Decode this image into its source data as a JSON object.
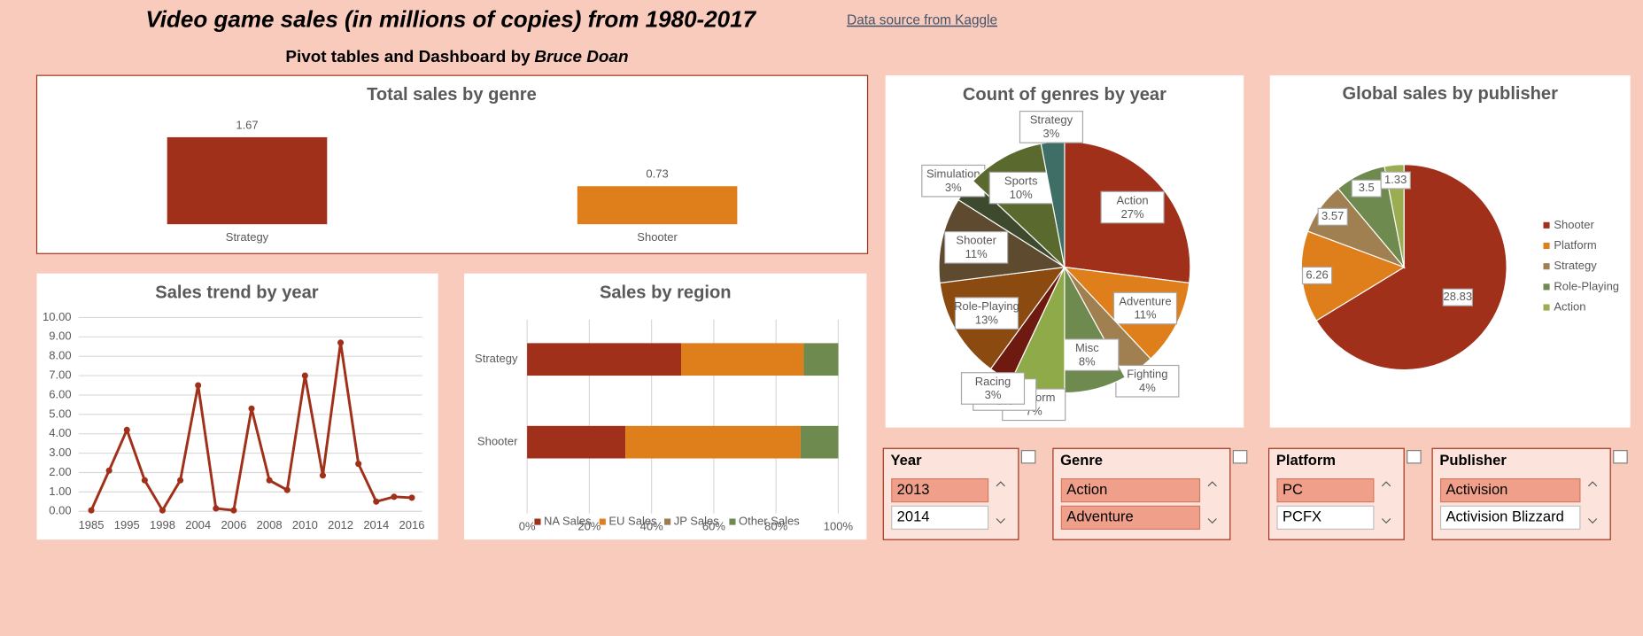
{
  "header": {
    "title": "Video game sales (in millions of copies) from 1980-2017",
    "link": "Data source from Kaggle",
    "subtitle": "Pivot tables and Dashboard by",
    "author": "Bruce Doan"
  },
  "chart_data": [
    {
      "type": "bar",
      "title": "Total sales by genre",
      "categories": [
        "Strategy",
        "Shooter"
      ],
      "values": [
        1.67,
        0.73
      ],
      "colors": [
        "#a0301a",
        "#df7f1c"
      ]
    },
    {
      "type": "line",
      "title": "Sales trend by year",
      "categories": [
        "1985",
        null,
        "1995",
        null,
        "1998",
        null,
        "2004",
        null,
        "2006",
        null,
        "2008",
        null,
        "2010",
        null,
        "2012",
        null,
        "2014",
        null,
        "2016"
      ],
      "values": [
        0.05,
        2.1,
        4.2,
        1.6,
        0.05,
        1.6,
        6.5,
        0.15,
        0.05,
        5.3,
        1.6,
        1.1,
        7.0,
        1.85,
        8.7,
        2.45,
        0.5,
        0.75,
        0.7
      ],
      "color": "#a0301a",
      "ylim": [
        0,
        10
      ],
      "yticks": [
        {
          "value": 0,
          "label": "0.00"
        },
        {
          "value": 1,
          "label": "1.00"
        },
        {
          "value": 2,
          "label": "2.00"
        },
        {
          "value": 3,
          "label": "3.00"
        },
        {
          "value": 4,
          "label": "4.00"
        },
        {
          "value": 5,
          "label": "5.00"
        },
        {
          "value": 6,
          "label": "6.00"
        },
        {
          "value": 7,
          "label": "7.00"
        },
        {
          "value": 8,
          "label": "8.00"
        },
        {
          "value": 9,
          "label": "9.00"
        },
        {
          "value": 10,
          "label": "10.00"
        }
      ],
      "grid": true
    },
    {
      "type": "bar",
      "orientation": "horizontal",
      "stacked": true,
      "title": "Sales by region",
      "categories": [
        "Strategy",
        "Shooter"
      ],
      "series": [
        {
          "name": "NA Sales",
          "color": "#a0301a",
          "values": [
            49.5,
            31.6
          ]
        },
        {
          "name": "EU Sales",
          "color": "#df7f1c",
          "values": [
            39.4,
            56.3
          ]
        },
        {
          "name": "JP Sales",
          "color": "#9c7b4f",
          "values": [
            0,
            0
          ]
        },
        {
          "name": "Other Sales",
          "color": "#6f8a4e",
          "values": [
            11.1,
            12.1
          ]
        }
      ],
      "xlim": [
        0,
        100
      ],
      "xticks": [
        {
          "value": 0,
          "label": "0%"
        },
        {
          "value": 20,
          "label": "20%"
        },
        {
          "value": 40,
          "label": "40%"
        },
        {
          "value": 60,
          "label": "60%"
        },
        {
          "value": 80,
          "label": "80%"
        },
        {
          "value": 100,
          "label": "100%"
        }
      ],
      "grid": true,
      "legend": "bottom"
    },
    {
      "type": "pie",
      "title": "Count of genres by year",
      "categories": [
        "Action",
        "Adventure",
        "Fighting",
        "Misc",
        "Platform",
        "Puzzle",
        "Racing",
        "Role-Playing",
        "Shooter",
        "Simulation",
        "Sports",
        "Strategy"
      ],
      "values": [
        27,
        11,
        4,
        8,
        7,
        0,
        3,
        13,
        11,
        3,
        10,
        3
      ],
      "value_labels": [
        "27%",
        "11%",
        "4%",
        "8%",
        "7%",
        "0%",
        "3%",
        "13%",
        "11%",
        "3%",
        "10%",
        "3%"
      ],
      "colors": [
        "#a0301a",
        "#df7f1c",
        "#a08050",
        "#6f8a4e",
        "#8faa48",
        "#5e9e9a",
        "#6e1a10",
        "#8a4a10",
        "#5e4a2e",
        "#3e4a2e",
        "#5a6a2e",
        "#3e6e66"
      ]
    },
    {
      "type": "pie",
      "title": "Global sales by publisher",
      "categories": [
        "Shooter",
        "Platform",
        "Strategy",
        "Role-Playing",
        "Action"
      ],
      "values": [
        28.83,
        6.26,
        3.57,
        3.5,
        1.33
      ],
      "colors": [
        "#a0301a",
        "#df7f1c",
        "#a08050",
        "#6f8a4e",
        "#9aad50"
      ],
      "legend": "right"
    }
  ],
  "slicers": [
    {
      "title": "Year",
      "items": [
        "2013",
        "2014"
      ],
      "selected": [
        true,
        false
      ]
    },
    {
      "title": "Genre",
      "items": [
        "Action",
        "Adventure"
      ],
      "selected": [
        true,
        true
      ]
    },
    {
      "title": "Platform",
      "items": [
        "PC",
        "PCFX"
      ],
      "selected": [
        true,
        false
      ]
    },
    {
      "title": "Publisher",
      "items": [
        "Activision",
        "Activision Blizzard"
      ],
      "selected": [
        true,
        false
      ]
    }
  ]
}
